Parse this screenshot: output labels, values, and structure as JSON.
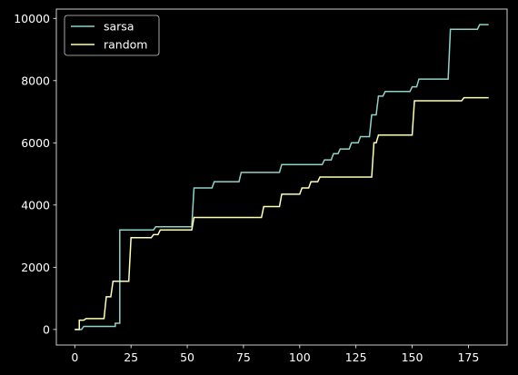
{
  "chart_data": {
    "type": "line",
    "title": "",
    "xlabel": "",
    "ylabel": "",
    "xlim": [
      -8.2,
      192.2
    ],
    "ylim": [
      -500,
      10300
    ],
    "x_ticks": [
      0,
      25,
      50,
      75,
      100,
      125,
      150,
      175
    ],
    "y_ticks": [
      0,
      2000,
      4000,
      6000,
      8000,
      10000
    ],
    "grid": false,
    "background": "#000000",
    "axis_color": "#ffffff",
    "legend": {
      "position": "top-left",
      "entries": [
        "sarsa",
        "random"
      ]
    },
    "series": [
      {
        "name": "sarsa",
        "color": "#8dd3c7",
        "step": true,
        "points": [
          [
            0,
            0
          ],
          [
            3,
            0
          ],
          [
            4,
            100
          ],
          [
            18,
            100
          ],
          [
            18,
            200
          ],
          [
            20,
            200
          ],
          [
            20,
            3200
          ],
          [
            35,
            3200
          ],
          [
            36,
            3300
          ],
          [
            52,
            3300
          ],
          [
            53,
            4550
          ],
          [
            61,
            4550
          ],
          [
            62,
            4750
          ],
          [
            73,
            4750
          ],
          [
            74,
            5050
          ],
          [
            91,
            5050
          ],
          [
            92,
            5300
          ],
          [
            110,
            5300
          ],
          [
            111,
            5450
          ],
          [
            114,
            5450
          ],
          [
            115,
            5650
          ],
          [
            117,
            5650
          ],
          [
            118,
            5800
          ],
          [
            122,
            5800
          ],
          [
            123,
            6000
          ],
          [
            126,
            6000
          ],
          [
            127,
            6200
          ],
          [
            131,
            6200
          ],
          [
            132,
            6900
          ],
          [
            134,
            6900
          ],
          [
            135,
            7500
          ],
          [
            137,
            7500
          ],
          [
            138,
            7650
          ],
          [
            149,
            7650
          ],
          [
            150,
            7800
          ],
          [
            152,
            7800
          ],
          [
            153,
            8050
          ],
          [
            166,
            8050
          ],
          [
            167,
            9650
          ],
          [
            179,
            9650
          ],
          [
            180,
            9800
          ],
          [
            184,
            9800
          ]
        ]
      },
      {
        "name": "random",
        "color": "#ffffb3",
        "step": true,
        "points": [
          [
            0,
            0
          ],
          [
            2,
            0
          ],
          [
            2,
            300
          ],
          [
            4,
            300
          ],
          [
            5,
            350
          ],
          [
            13,
            350
          ],
          [
            14,
            1050
          ],
          [
            16,
            1050
          ],
          [
            17,
            1550
          ],
          [
            24,
            1550
          ],
          [
            25,
            2950
          ],
          [
            34,
            2950
          ],
          [
            35,
            3050
          ],
          [
            37,
            3050
          ],
          [
            38,
            3200
          ],
          [
            52,
            3200
          ],
          [
            53,
            3600
          ],
          [
            83,
            3600
          ],
          [
            84,
            3950
          ],
          [
            91,
            3950
          ],
          [
            92,
            4350
          ],
          [
            100,
            4350
          ],
          [
            101,
            4550
          ],
          [
            104,
            4550
          ],
          [
            105,
            4750
          ],
          [
            108,
            4750
          ],
          [
            109,
            4900
          ],
          [
            132,
            4900
          ],
          [
            133,
            6000
          ],
          [
            134,
            6000
          ],
          [
            135,
            6250
          ],
          [
            150,
            6250
          ],
          [
            151,
            7350
          ],
          [
            172,
            7350
          ],
          [
            173,
            7450
          ],
          [
            184,
            7450
          ]
        ]
      }
    ]
  }
}
